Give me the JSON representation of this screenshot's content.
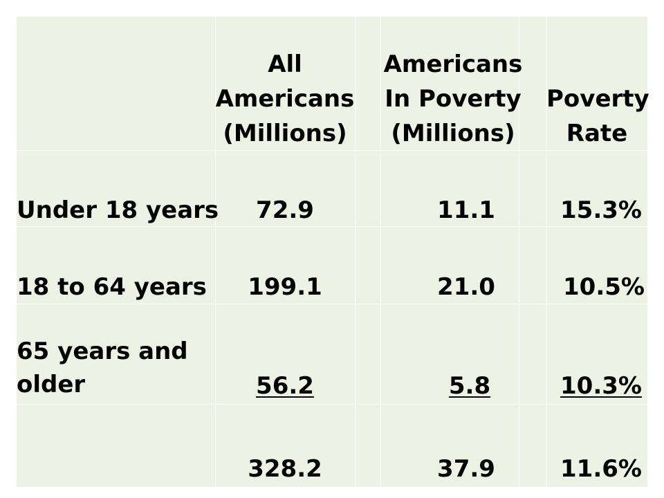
{
  "table": {
    "headers": {
      "all": [
        "All",
        "Americans",
        "(Millions)"
      ],
      "poverty": [
        "Americans",
        "In Poverty",
        "(Millions)"
      ],
      "rate": [
        "Poverty",
        "Rate"
      ]
    },
    "rows": [
      {
        "label": [
          "Under 18 years"
        ],
        "all": "72.9",
        "poverty": "11.1",
        "rate": "15.3%"
      },
      {
        "label": [
          "18 to 64 years"
        ],
        "all": "199.1",
        "poverty": "21.0",
        "rate": "10.5%"
      },
      {
        "label": [
          "65 years and",
          "older"
        ],
        "all": "56.2",
        "poverty": "5.8",
        "rate": "10.3%"
      },
      {
        "label": [
          ""
        ],
        "all": "328.2",
        "poverty": "37.9",
        "rate": "11.6%"
      }
    ]
  },
  "colors": {
    "table_background": "#eef2e4",
    "grid_lines": "#ffffff",
    "text": "#000000"
  }
}
